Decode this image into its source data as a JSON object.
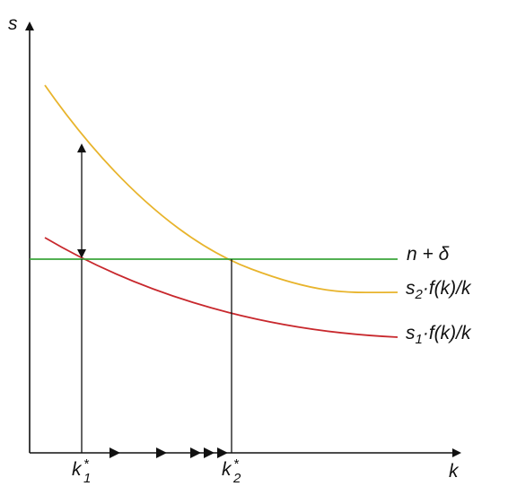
{
  "axes": {
    "y_label": "s",
    "x_label": "k"
  },
  "lines": {
    "depreciation": "n + δ"
  },
  "curves": [
    {
      "base": "s",
      "sub": "2",
      "tail": "·f(k)/k"
    },
    {
      "base": "s",
      "sub": "1",
      "tail": "·f(k)/k"
    }
  ],
  "points": [
    {
      "base": "k",
      "sub": "1",
      "sup": "*"
    },
    {
      "base": "k",
      "sub": "2",
      "sup": "*"
    }
  ]
}
